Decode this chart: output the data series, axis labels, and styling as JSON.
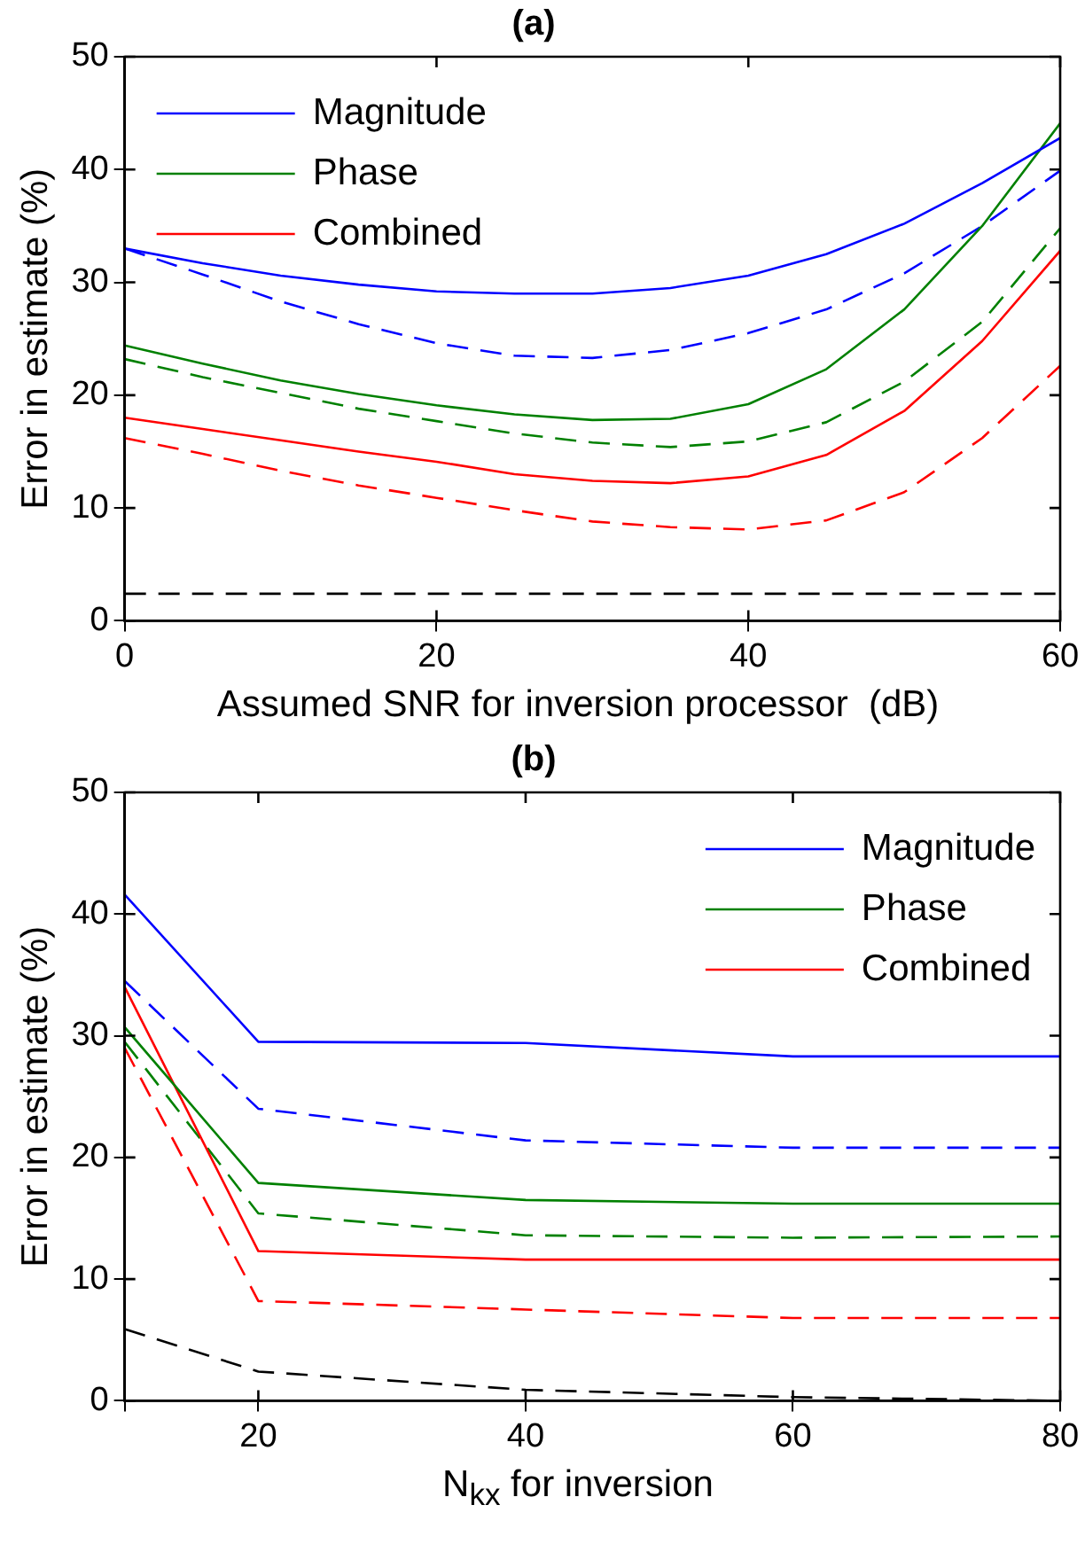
{
  "chart_data": [
    {
      "type": "line",
      "title": "(a)",
      "xlabel": "Assumed SNR for inversion processor  (dB)",
      "ylabel": "Error in estimate (%)",
      "x": [
        0,
        5,
        10,
        15,
        20,
        25,
        30,
        35,
        40,
        45,
        50,
        55,
        60
      ],
      "series": [
        {
          "name": "Magnitude",
          "color": "#0000ff",
          "values": [
            33,
            31.7,
            30.6,
            29.8,
            29.2,
            29.0,
            29.0,
            29.5,
            30.6,
            32.5,
            35.2,
            38.8,
            42.8
          ]
        },
        {
          "name": "Phase",
          "color": "#008000",
          "values": [
            24.4,
            22.8,
            21.3,
            20.1,
            19.1,
            18.3,
            17.8,
            17.9,
            19.2,
            22.3,
            27.6,
            35.0,
            44.1
          ]
        },
        {
          "name": "Combined",
          "color": "#ff0000",
          "values": [
            18.0,
            17.0,
            16.0,
            15.0,
            14.1,
            13.0,
            12.4,
            12.2,
            12.8,
            14.7,
            18.6,
            24.8,
            32.8
          ]
        },
        {
          "color": "#0000ff",
          "line_style": "dashed",
          "values": [
            33,
            30.7,
            28.3,
            26.3,
            24.6,
            23.5,
            23.3,
            24.0,
            25.5,
            27.6,
            30.8,
            35.0,
            39.9
          ]
        },
        {
          "color": "#008000",
          "line_style": "dashed",
          "values": [
            23.2,
            21.6,
            20.2,
            18.8,
            17.7,
            16.6,
            15.8,
            15.4,
            15.9,
            17.6,
            21.2,
            26.5,
            34.8
          ]
        },
        {
          "color": "#ff0000",
          "line_style": "dashed",
          "values": [
            16.2,
            14.8,
            13.3,
            12.0,
            10.9,
            9.8,
            8.8,
            8.3,
            8.1,
            8.9,
            11.4,
            16.2,
            22.6
          ]
        },
        {
          "color": "#000000",
          "line_style": "dashed",
          "x": [
            0,
            60
          ],
          "values": [
            2.4,
            2.4
          ]
        }
      ],
      "xlim": [
        0,
        60
      ],
      "xticks": [
        0,
        20,
        40,
        60
      ],
      "ylim": [
        0,
        50
      ],
      "yticks": [
        0,
        10,
        20,
        30,
        40,
        50
      ],
      "grid": false,
      "legend": "top left",
      "marker": "none",
      "line_style": "solid"
    },
    {
      "type": "line",
      "title": "(b)",
      "xlabel": "N$_{kx}$ for inversion",
      "ylabel": "Error in estimate (%)",
      "x": [
        10,
        20,
        40,
        60,
        80
      ],
      "series": [
        {
          "name": "Magnitude",
          "color": "#0000ff",
          "values": [
            41.6,
            29.5,
            29.4,
            28.3,
            28.3
          ]
        },
        {
          "name": "Phase",
          "color": "#008000",
          "values": [
            30.7,
            17.9,
            16.5,
            16.2,
            16.2
          ]
        },
        {
          "name": "Combined",
          "color": "#ff0000",
          "values": [
            34.0,
            12.3,
            11.6,
            11.6,
            11.6
          ]
        },
        {
          "color": "#0000ff",
          "line_style": "dashed",
          "values": [
            34.5,
            24.0,
            21.4,
            20.8,
            20.8
          ]
        },
        {
          "color": "#008000",
          "line_style": "dashed",
          "values": [
            29.5,
            15.4,
            13.6,
            13.4,
            13.5
          ]
        },
        {
          "color": "#ff0000",
          "line_style": "dashed",
          "values": [
            29.0,
            8.2,
            7.5,
            6.8,
            6.8
          ]
        },
        {
          "color": "#000000",
          "line_style": "dashed",
          "values": [
            5.9,
            2.4,
            0.9,
            0.3,
            0
          ]
        }
      ],
      "xlim": [
        10,
        80
      ],
      "xticks": [
        {
          "value": 10,
          "label": null
        },
        20,
        40,
        60,
        80
      ],
      "ylim": [
        0,
        50
      ],
      "yticks": [
        0,
        10,
        20,
        30,
        40,
        50
      ],
      "grid": false,
      "legend": "top right",
      "marker": "none",
      "line_style": "solid"
    }
  ]
}
